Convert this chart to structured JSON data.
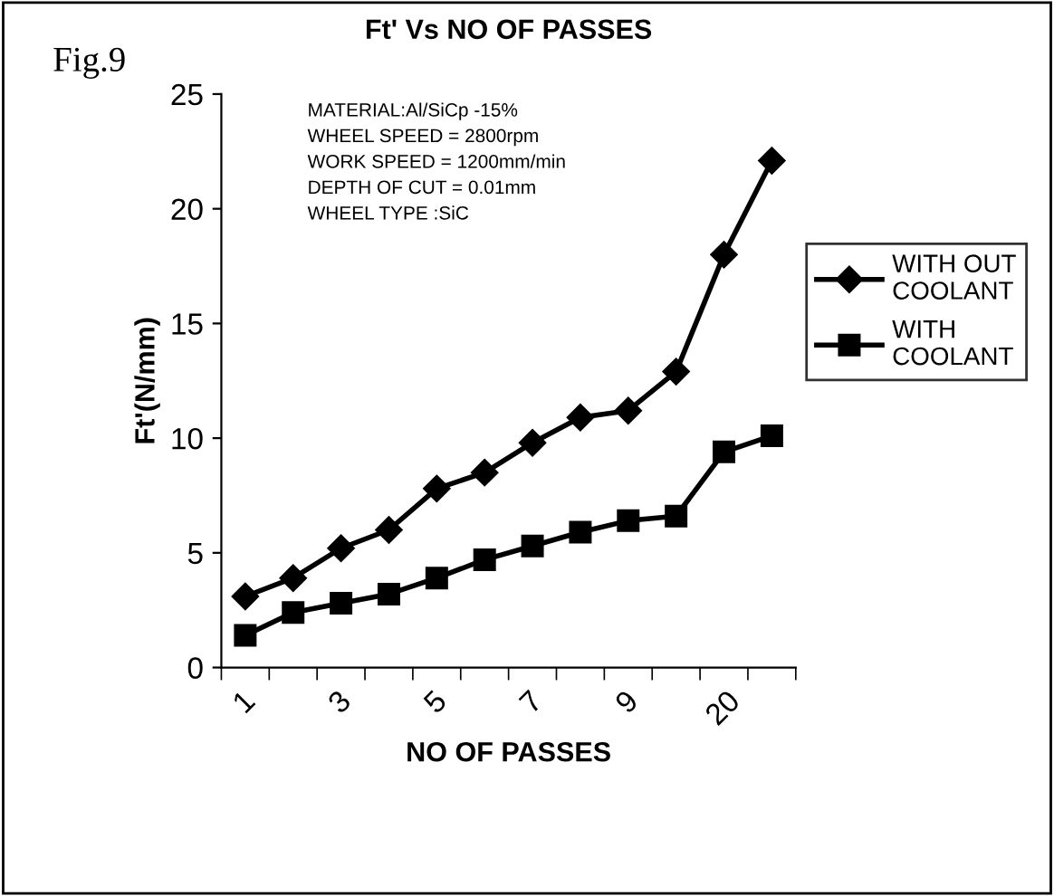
{
  "chart_data": {
    "type": "line",
    "title": "Ft' Vs NO OF PASSES",
    "xlabel": "NO OF PASSES",
    "ylabel": "Ft'(N/mm)",
    "annotations": [
      "Fig.9",
      "MATERIAL:Al/SiCp -15%\nWHEEL SPEED = 2800rpm\nWORK SPEED = 1200mm/min\nDEPTH OF CUT = 0.01mm\nWHEEL TYPE :SiC"
    ],
    "categories": [
      "1",
      null,
      "3",
      null,
      "5",
      null,
      "7",
      null,
      "9",
      null,
      "20",
      null
    ],
    "series": [
      {
        "name": "WITH OUT COOLANT",
        "color": "#000000",
        "marker": "diamond",
        "values": [
          3.1,
          3.9,
          5.2,
          6.0,
          7.8,
          8.5,
          9.8,
          10.9,
          11.2,
          12.9,
          18.0,
          22.1
        ]
      },
      {
        "name": "WITH COOLANT",
        "color": "#000000",
        "marker": "square",
        "values": [
          1.4,
          2.4,
          2.8,
          3.2,
          3.9,
          4.7,
          5.3,
          5.9,
          6.4,
          6.6,
          9.4,
          10.1
        ]
      }
    ],
    "ylim": [
      0,
      25
    ],
    "yticks": [
      0,
      5,
      10,
      15,
      20,
      25
    ],
    "grid": false,
    "legend": "right",
    "line_style": "solid"
  }
}
